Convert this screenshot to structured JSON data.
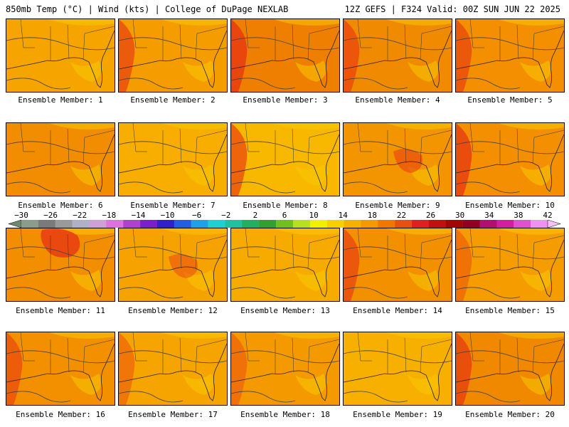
{
  "header": {
    "left": "850mb Temp (°C) | Wind (kts) | College of DuPage NEXLAB",
    "right": "12Z GEFS | F324 Valid: 00Z SUN JUN 22 2025"
  },
  "members": [
    {
      "label": "Ensemble Member: 1",
      "fill": "#f5a400",
      "hot": 0.05,
      "hotSide": "w"
    },
    {
      "label": "Ensemble Member: 2",
      "fill": "#f59c00",
      "hot": 0.35,
      "hotSide": "w"
    },
    {
      "label": "Ensemble Member: 3",
      "fill": "#ef7f00",
      "hot": 0.55,
      "hotSide": "w"
    },
    {
      "label": "Ensemble Member: 4",
      "fill": "#f08a00",
      "hot": 0.35,
      "hotSide": "w"
    },
    {
      "label": "Ensemble Member: 5",
      "fill": "#f38f00",
      "hot": 0.35,
      "hotSide": "w"
    },
    {
      "label": "Ensemble Member: 6",
      "fill": "#f28c00",
      "hot": 0.05,
      "hotSide": "w"
    },
    {
      "label": "Ensemble Member: 7",
      "fill": "#f7ae00",
      "hot": 0.05,
      "hotSide": "w"
    },
    {
      "label": "Ensemble Member: 8",
      "fill": "#f9b800",
      "hot": 0.35,
      "hotSide": "w"
    },
    {
      "label": "Ensemble Member: 9",
      "fill": "#f39500",
      "hot": 0.25,
      "hotSide": "c"
    },
    {
      "label": "Ensemble Member: 10",
      "fill": "#f38f00",
      "hot": 0.5,
      "hotSide": "w"
    },
    {
      "label": "Ensemble Member: 11",
      "fill": "#f38e00",
      "hot": 0.55,
      "hotSide": "n"
    },
    {
      "label": "Ensemble Member: 12",
      "fill": "#f6a200",
      "hot": 0.15,
      "hotSide": "c"
    },
    {
      "label": "Ensemble Member: 13",
      "fill": "#f7ab00",
      "hot": 0.05,
      "hotSide": "w"
    },
    {
      "label": "Ensemble Member: 14",
      "fill": "#f29000",
      "hot": 0.35,
      "hotSide": "w"
    },
    {
      "label": "Ensemble Member: 15",
      "fill": "#f59c00",
      "hot": 0.1,
      "hotSide": "w"
    },
    {
      "label": "Ensemble Member: 16",
      "fill": "#f29000",
      "hot": 0.3,
      "hotSide": "w"
    },
    {
      "label": "Ensemble Member: 17",
      "fill": "#f6a400",
      "hot": 0.1,
      "hotSide": "w"
    },
    {
      "label": "Ensemble Member: 18",
      "fill": "#f49a00",
      "hot": 0.1,
      "hotSide": "w"
    },
    {
      "label": "Ensemble Member: 19",
      "fill": "#f8b000",
      "hot": 0.05,
      "hotSide": "w"
    },
    {
      "label": "Ensemble Member: 20",
      "fill": "#f08800",
      "hot": 0.45,
      "hotSide": "w"
    }
  ],
  "colorbar": {
    "ticks": [
      "−30",
      "−26",
      "−22",
      "−18",
      "−14",
      "−10",
      "−6",
      "−2",
      "2",
      "6",
      "10",
      "14",
      "18",
      "22",
      "26",
      "30",
      "34",
      "38",
      "42"
    ],
    "colors": [
      "#6e8a6e",
      "#8c9c8c",
      "#7a7a7a",
      "#9a9a9a",
      "#b0b0c8",
      "#cfa0d8",
      "#e070e0",
      "#b040d0",
      "#7a20c8",
      "#3020c8",
      "#2060e0",
      "#20a0e8",
      "#20d0d0",
      "#20c0a0",
      "#20b060",
      "#30a030",
      "#70c020",
      "#b8e020",
      "#f0f000",
      "#f8d000",
      "#f8b000",
      "#f89800",
      "#f07800",
      "#e85010",
      "#e02020",
      "#c01010",
      "#a00808",
      "#900020",
      "#b01070",
      "#d020a0",
      "#e050d0",
      "#f090f0",
      "#f8c0f8"
    ]
  }
}
